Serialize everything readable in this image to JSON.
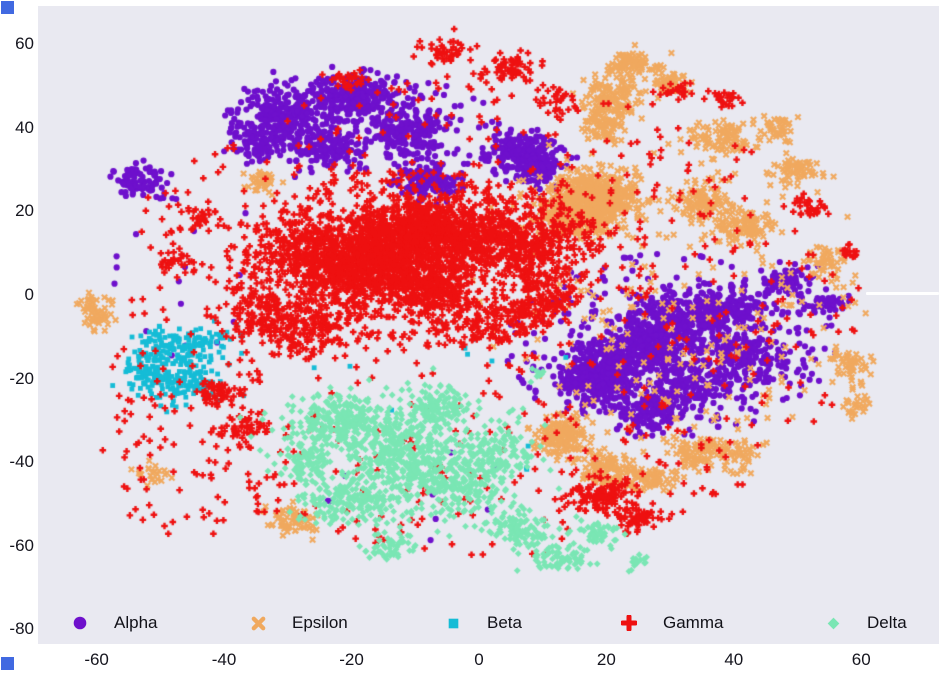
{
  "figure": {
    "background": "#ffffff",
    "plot_background": "#e9e9f1",
    "tick_label_color": "#15151e",
    "legend_label_color": "#111118",
    "corner_handle_color": "#4169e1"
  },
  "chart_data": {
    "type": "scatter",
    "title": "",
    "xlabel": "",
    "ylabel": "",
    "xlim": [
      -69.2,
      72.2
    ],
    "ylim": [
      -83.5,
      69.1
    ],
    "x_ticks": [
      "-60",
      "-40",
      "-20",
      "0",
      "20",
      "40",
      "60"
    ],
    "y_ticks": [
      "60",
      "40",
      "20",
      "0",
      "-20",
      "-40",
      "-60",
      "-80"
    ],
    "grid": "off",
    "legend_position": "lower center horizontal",
    "series": [
      {
        "name": "Alpha",
        "marker": "circle",
        "color": "#6e10cc",
        "clusters": {
          "gauss": [
            [
              -30,
              43,
              4,
              3.5,
              220
            ],
            [
              -19,
              47,
              4,
              3,
              260
            ],
            [
              -11,
              39,
              3,
              3,
              180
            ],
            [
              -24,
              35,
              3,
              2.5,
              140
            ],
            [
              -35,
              37,
              2.5,
              2.5,
              90
            ],
            [
              -8,
              27,
              2.5,
              2,
              160
            ],
            [
              7,
              34,
              3,
              2.5,
              200
            ],
            [
              10,
              29,
              2,
              2,
              80
            ],
            [
              -53,
              27,
              2,
              2,
              90
            ],
            [
              19,
              -20,
              3,
              3,
              420
            ],
            [
              24,
              -13,
              4,
              3,
              250
            ],
            [
              30,
              -7,
              4,
              3.5,
              260
            ],
            [
              38,
              -4,
              4,
              3,
              220
            ],
            [
              42,
              -15,
              3.5,
              3.5,
              180
            ],
            [
              33,
              -20,
              4,
              4,
              200
            ],
            [
              27,
              -28,
              3,
              2.5,
              120
            ],
            [
              48,
              3,
              2,
              2,
              70
            ],
            [
              55,
              -2,
              1.5,
              1.5,
              40
            ]
          ],
          "uniform": [
            [
              30,
              -12,
              26,
              22,
              260
            ],
            [
              -18,
              42,
              22,
              12,
              120
            ],
            [
              -5,
              -45,
              25,
              15,
              10
            ],
            [
              -45,
              5,
              15,
              20,
              15
            ]
          ],
          "ring": []
        }
      },
      {
        "name": "Epsilon",
        "marker": "x",
        "color": "#f0a95f",
        "clusters": {
          "gauss": [
            [
              18,
              23,
              3.5,
              3,
              550
            ],
            [
              15,
              18,
              3,
              2,
              200
            ],
            [
              19,
              40,
              2,
              2,
              80
            ],
            [
              21,
              47,
              2.5,
              3,
              140
            ],
            [
              24,
              55,
              2,
              1.5,
              80
            ],
            [
              30,
              51,
              1.5,
              1.5,
              50
            ],
            [
              35,
              22,
              2.5,
              2.5,
              120
            ],
            [
              42,
              16,
              2.5,
              2,
              100
            ],
            [
              50,
              30,
              2,
              1.5,
              60
            ],
            [
              38,
              37,
              2.5,
              2,
              90
            ],
            [
              47,
              40,
              1.5,
              1.5,
              40
            ],
            [
              13,
              -34,
              2.5,
              2.5,
              160
            ],
            [
              20,
              -42,
              2.5,
              2,
              130
            ],
            [
              27,
              -44,
              2,
              1.5,
              70
            ],
            [
              34,
              -38,
              2,
              2,
              80
            ],
            [
              40,
              -38,
              2,
              2,
              60
            ],
            [
              -60,
              -4,
              1.5,
              2,
              60
            ],
            [
              -29,
              -54,
              2.2,
              1.8,
              70
            ],
            [
              -34,
              27,
              1.5,
              1.5,
              40
            ],
            [
              58,
              -17,
              1.5,
              2,
              50
            ],
            [
              55,
              8,
              1.5,
              1.5,
              40
            ],
            [
              59,
              -27,
              1,
              1.5,
              25
            ],
            [
              -51,
              -43,
              1.5,
              1.5,
              25
            ]
          ],
          "uniform": [
            [
              30,
              5,
              32,
              40,
              140
            ],
            [
              40,
              -12,
              22,
              25,
              100
            ]
          ],
          "ring": []
        }
      },
      {
        "name": "Beta",
        "marker": "square",
        "color": "#15bcd6",
        "clusters": {
          "gauss": [
            [
              -49,
              -14,
              3,
              3,
              130
            ],
            [
              -46,
              -21,
              3,
              2.5,
              110
            ],
            [
              -52,
              -19,
              2,
              2,
              70
            ],
            [
              -43,
              -11,
              2,
              2,
              50
            ]
          ],
          "uniform": [
            [
              -5,
              -25,
              25,
              20,
              12
            ]
          ],
          "ring": []
        }
      },
      {
        "name": "Gamma",
        "marker": "plus",
        "color": "#ee1111",
        "clusters": {
          "gauss": [
            [
              -14,
              12,
              7,
              4.5,
              900
            ],
            [
              -6,
              16,
              5,
              3,
              450
            ],
            [
              -20,
              5,
              5,
              4,
              350
            ],
            [
              -28,
              10,
              4,
              5,
              250
            ],
            [
              -10,
              2,
              5,
              3,
              250
            ],
            [
              8,
              14,
              5,
              4,
              250
            ],
            [
              -33,
              -5,
              3,
              4,
              150
            ],
            [
              -26,
              -8,
              3,
              3,
              120
            ],
            [
              -5,
              58,
              2,
              1.5,
              50
            ],
            [
              5,
              54,
              2,
              1.5,
              60
            ],
            [
              -20,
              52,
              1.5,
              1.5,
              30
            ],
            [
              12,
              47,
              1.5,
              1.5,
              30
            ],
            [
              31,
              49,
              1.5,
              1,
              25
            ],
            [
              39,
              47,
              1.5,
              1,
              25
            ],
            [
              19,
              -48,
              2.5,
              2,
              120
            ],
            [
              25,
              -53,
              2,
              1.5,
              60
            ],
            [
              -41,
              -23,
              2,
              1.5,
              50
            ],
            [
              -37,
              -32,
              2,
              1.5,
              40
            ],
            [
              -48,
              8,
              1.5,
              1.5,
              30
            ],
            [
              -44,
              18,
              1.5,
              1.5,
              30
            ],
            [
              52,
              21,
              1.5,
              1.5,
              30
            ],
            [
              58,
              10,
              1,
              1,
              15
            ]
          ],
          "uniform": [
            [
              -10,
              8,
              30,
              22,
              500
            ],
            [
              0,
              -5,
              60,
              58,
              650
            ],
            [
              -45,
              -40,
              15,
              18,
              80
            ]
          ],
          "ring": [
            [
              2,
              2,
              5,
              13,
              550
            ]
          ]
        }
      },
      {
        "name": "Delta",
        "marker": "diamond",
        "color": "#7ae6b4",
        "clusters": {
          "gauss": [
            [
              -22,
              -30,
              4,
              3.5,
              260
            ],
            [
              -12,
              -38,
              5,
              4,
              320
            ],
            [
              -20,
              -49,
              4,
              3,
              200
            ],
            [
              -4,
              -46,
              4,
              3.5,
              180
            ],
            [
              -7,
              -27,
              3,
              2.5,
              140
            ],
            [
              2,
              -38,
              3,
              3,
              120
            ],
            [
              -27,
              -40,
              2.5,
              2.5,
              90
            ],
            [
              6,
              -56,
              2.5,
              2,
              90
            ],
            [
              13,
              -63,
              2.5,
              1.5,
              70
            ],
            [
              18,
              -57,
              2,
              1.5,
              50
            ],
            [
              -14,
              -60,
              2,
              1.5,
              50
            ],
            [
              25,
              -64,
              1,
              1,
              15
            ],
            [
              9,
              -20,
              1,
              1,
              10
            ]
          ],
          "uniform": [
            [
              -8,
              -40,
              22,
              18,
              120
            ]
          ],
          "ring": []
        }
      }
    ]
  }
}
